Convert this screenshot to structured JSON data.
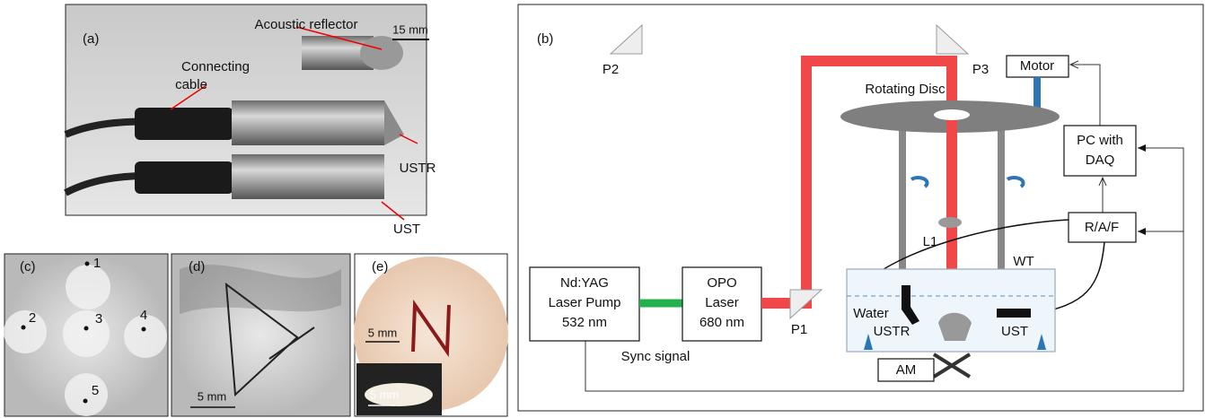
{
  "panels": {
    "a": {
      "label": "(a)",
      "reflector": "Acoustic reflector",
      "scale": "15 mm",
      "cable": [
        "Connecting",
        "cable"
      ],
      "ustr": "USTR",
      "ust": "UST"
    },
    "c": {
      "label": "(c)",
      "points": [
        "1",
        "2",
        "3",
        "4",
        "5"
      ]
    },
    "d": {
      "label": "(d)",
      "scale": "5 mm"
    },
    "e": {
      "label": "(e)",
      "scale": "5 mm",
      "inset_scale": "5 mm"
    },
    "b": {
      "label": "(b)",
      "prisms": [
        "P1",
        "P2",
        "P3"
      ],
      "motor": "Motor",
      "disc": "Rotating Disc",
      "pc": [
        "PC with",
        "DAQ"
      ],
      "lens": "L1",
      "raf": "R/A/F",
      "tank": "WT",
      "pump": [
        "Nd:YAG",
        "Laser Pump",
        "532 nm"
      ],
      "opo": [
        "OPO",
        "Laser",
        "680 nm"
      ],
      "water": "Water",
      "ustr": "USTR",
      "ust": "UST",
      "sync": "Sync signal",
      "am": "AM"
    }
  }
}
